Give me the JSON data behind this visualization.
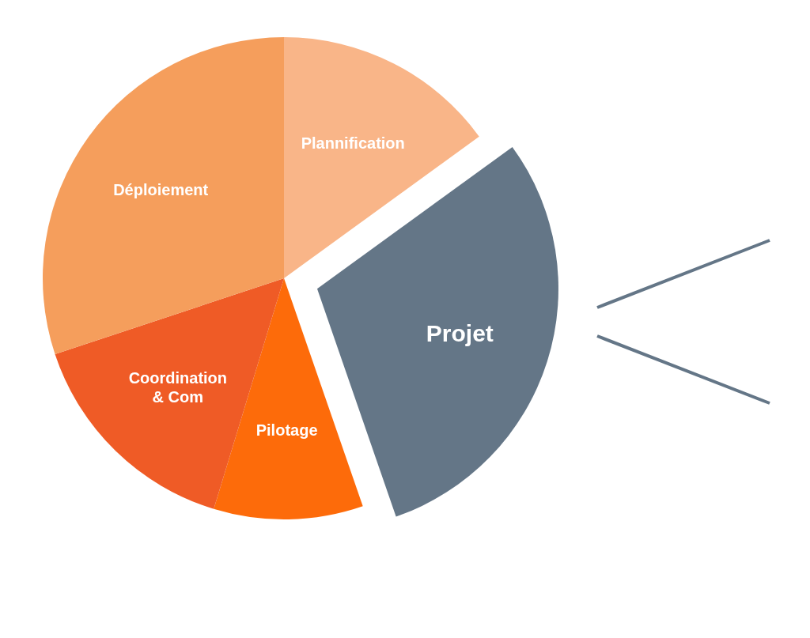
{
  "chart_data": {
    "type": "pie",
    "categories": [
      "Plannification",
      "Projet",
      "Pilotage",
      "Coordination & Com",
      "Déploiement"
    ],
    "values": [
      15,
      29.7,
      10,
      15.2,
      30.1
    ],
    "colors": [
      "#f9b588",
      "#647687",
      "#fd6b0a",
      "#ef5b26",
      "#f59e5c"
    ],
    "legend": false
  }
}
